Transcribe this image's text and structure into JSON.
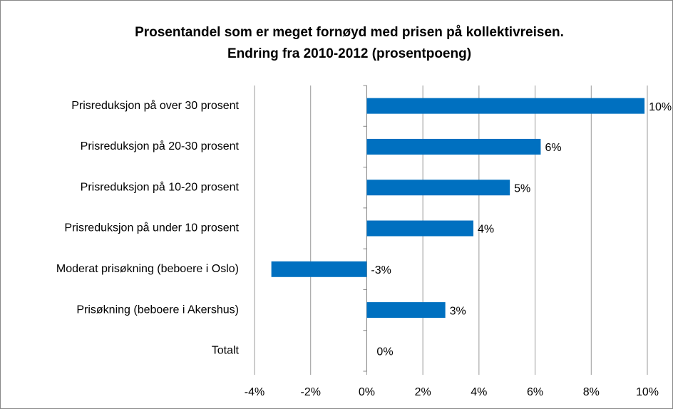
{
  "chart_data": {
    "type": "bar",
    "orientation": "horizontal",
    "title": "Prosentandel som er meget fornøyd med prisen på kollektivreisen.",
    "subtitle": "Endring fra 2010-2012 (prosentpoeng)",
    "categories": [
      "Prisreduksjon på over 30 prosent",
      "Prisreduksjon på 20-30 prosent",
      "Prisreduksjon på 10-20 prosent",
      "Prisreduksjon på under 10 prosent",
      "Moderat prisøkning (beboere i Oslo)",
      "Prisøkning (beboere i Akershus)",
      "Totalt"
    ],
    "values": [
      9.9,
      6.2,
      5.1,
      3.8,
      -3.4,
      2.8,
      0
    ],
    "value_labels": [
      "10%",
      "6%",
      "5%",
      "4%",
      "-3%",
      "3%",
      "0%"
    ],
    "color": "#0070c0",
    "xlim": [
      -4,
      10
    ],
    "xticks": [
      {
        "value": -4,
        "label": "-4%"
      },
      {
        "value": -2,
        "label": "-2%"
      },
      {
        "value": 0,
        "label": "0%"
      },
      {
        "value": 2,
        "label": "2%"
      },
      {
        "value": 4,
        "label": "4%"
      },
      {
        "value": 6,
        "label": "6%"
      },
      {
        "value": 8,
        "label": "8%"
      },
      {
        "value": 10,
        "label": "10%"
      }
    ],
    "grid": true
  }
}
